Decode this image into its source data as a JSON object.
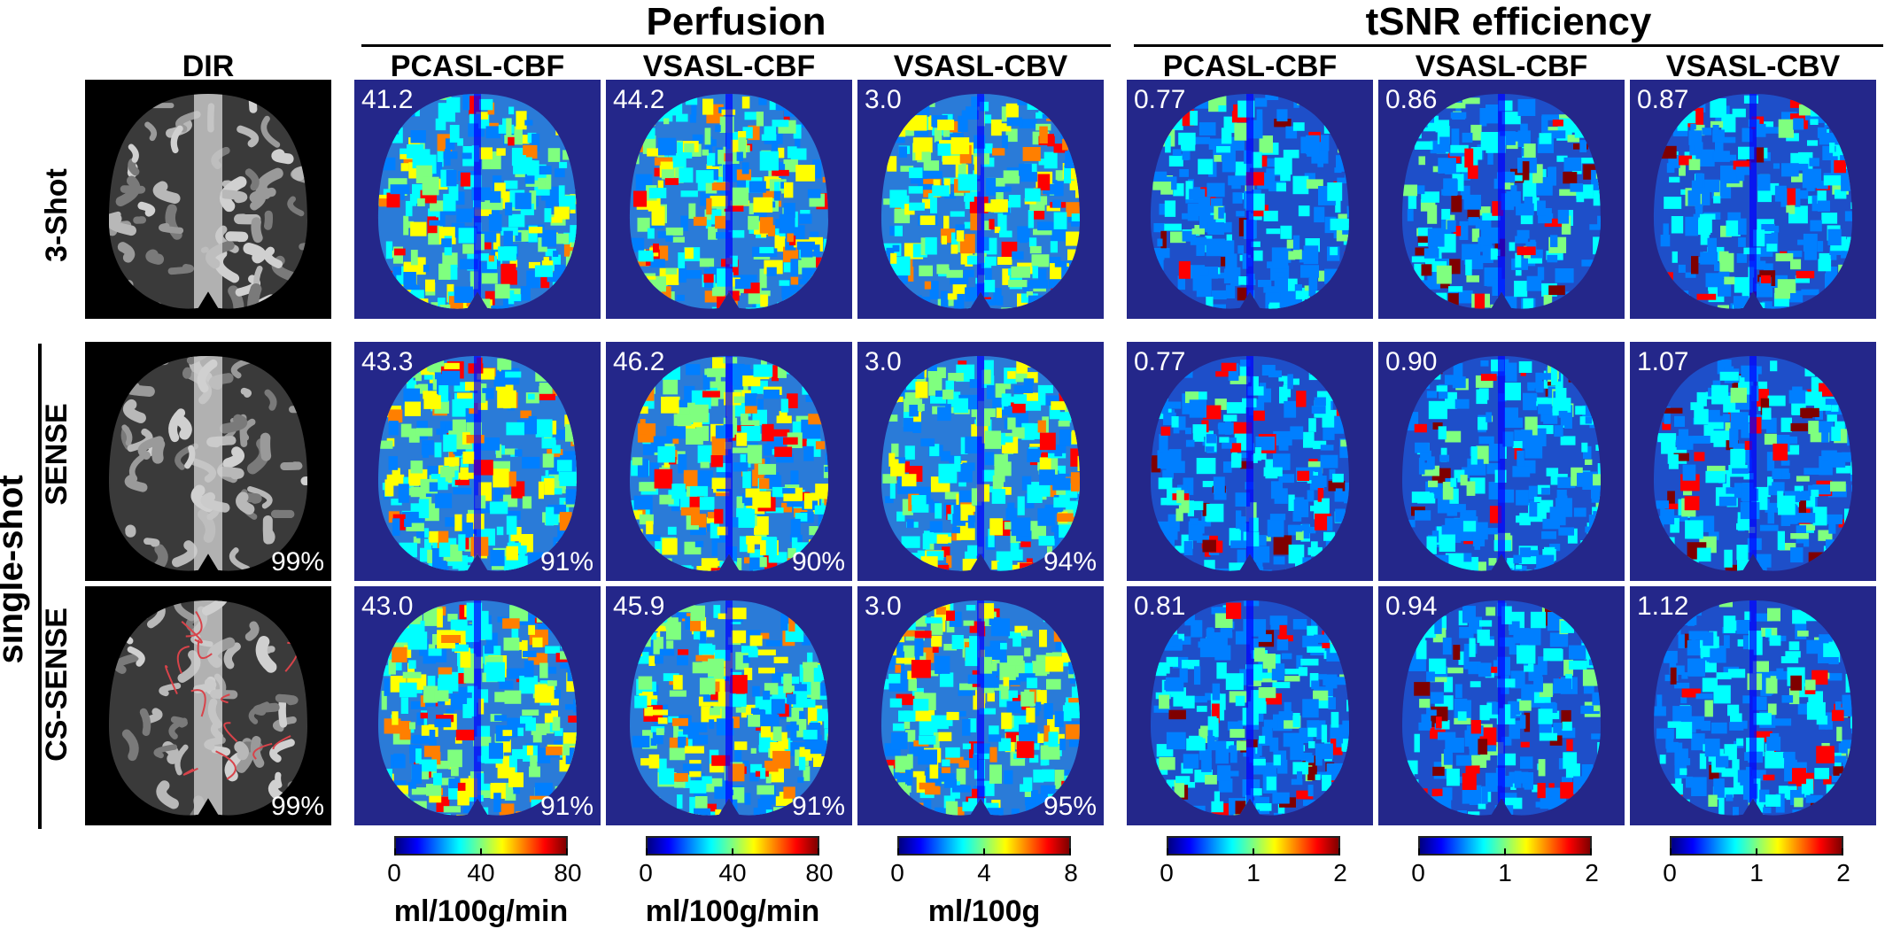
{
  "groups": {
    "perfusion": "Perfusion",
    "tsnr": "tSNR efficiency"
  },
  "columns": {
    "dir": "DIR",
    "pc_cbf": "PCASL-CBF",
    "vs_cbf": "VSASL-CBF",
    "vs_cbv": "VSASL-CBV",
    "t_pc_cbf": "PCASL-CBF",
    "t_vs_cbf": "VSASL-CBF",
    "t_vs_cbv": "VSASL-CBV"
  },
  "rows": {
    "three_shot": "3-Shot",
    "single_shot": "single-shot",
    "sense": "SENSE",
    "cs_sense": "CS-SENSE"
  },
  "values": {
    "three_shot": {
      "pc_cbf": "41.2",
      "vs_cbf": "44.2",
      "vs_cbv": "3.0",
      "t_pc_cbf": "0.77",
      "t_vs_cbf": "0.86",
      "t_vs_cbv": "0.87"
    },
    "sense": {
      "pc_cbf": "43.3",
      "vs_cbf": "46.2",
      "vs_cbv": "3.0",
      "t_pc_cbf": "0.77",
      "t_vs_cbf": "0.90",
      "t_vs_cbv": "1.07",
      "dir_pct": "99%",
      "pc_cbf_pct": "91%",
      "vs_cbf_pct": "90%",
      "vs_cbv_pct": "94%"
    },
    "cs_sense": {
      "pc_cbf": "43.0",
      "vs_cbf": "45.9",
      "vs_cbv": "3.0",
      "t_pc_cbf": "0.81",
      "t_vs_cbf": "0.94",
      "t_vs_cbv": "1.12",
      "dir_pct": "99%",
      "pc_cbf_pct": "91%",
      "vs_cbf_pct": "91%",
      "vs_cbv_pct": "95%"
    }
  },
  "colorbars": {
    "cbf1": {
      "ticks": [
        "0",
        "40",
        "80"
      ],
      "unit": "ml/100g/min"
    },
    "cbf2": {
      "ticks": [
        "0",
        "40",
        "80"
      ],
      "unit": "ml/100g/min"
    },
    "cbv": {
      "ticks": [
        "0",
        "4",
        "8"
      ],
      "unit": "ml/100g"
    },
    "t1": {
      "ticks": [
        "0",
        "1",
        "2"
      ]
    },
    "t2": {
      "ticks": [
        "0",
        "1",
        "2"
      ]
    },
    "t3": {
      "ticks": [
        "0",
        "1",
        "2"
      ]
    }
  },
  "colors": {
    "jet_background": "#24278a",
    "outline": "#d8434a",
    "jet": [
      "#00007f",
      "#0000ff",
      "#007fff",
      "#00ffff",
      "#7fff7f",
      "#ffff00",
      "#ff7f00",
      "#ff0000",
      "#7f0000"
    ]
  }
}
